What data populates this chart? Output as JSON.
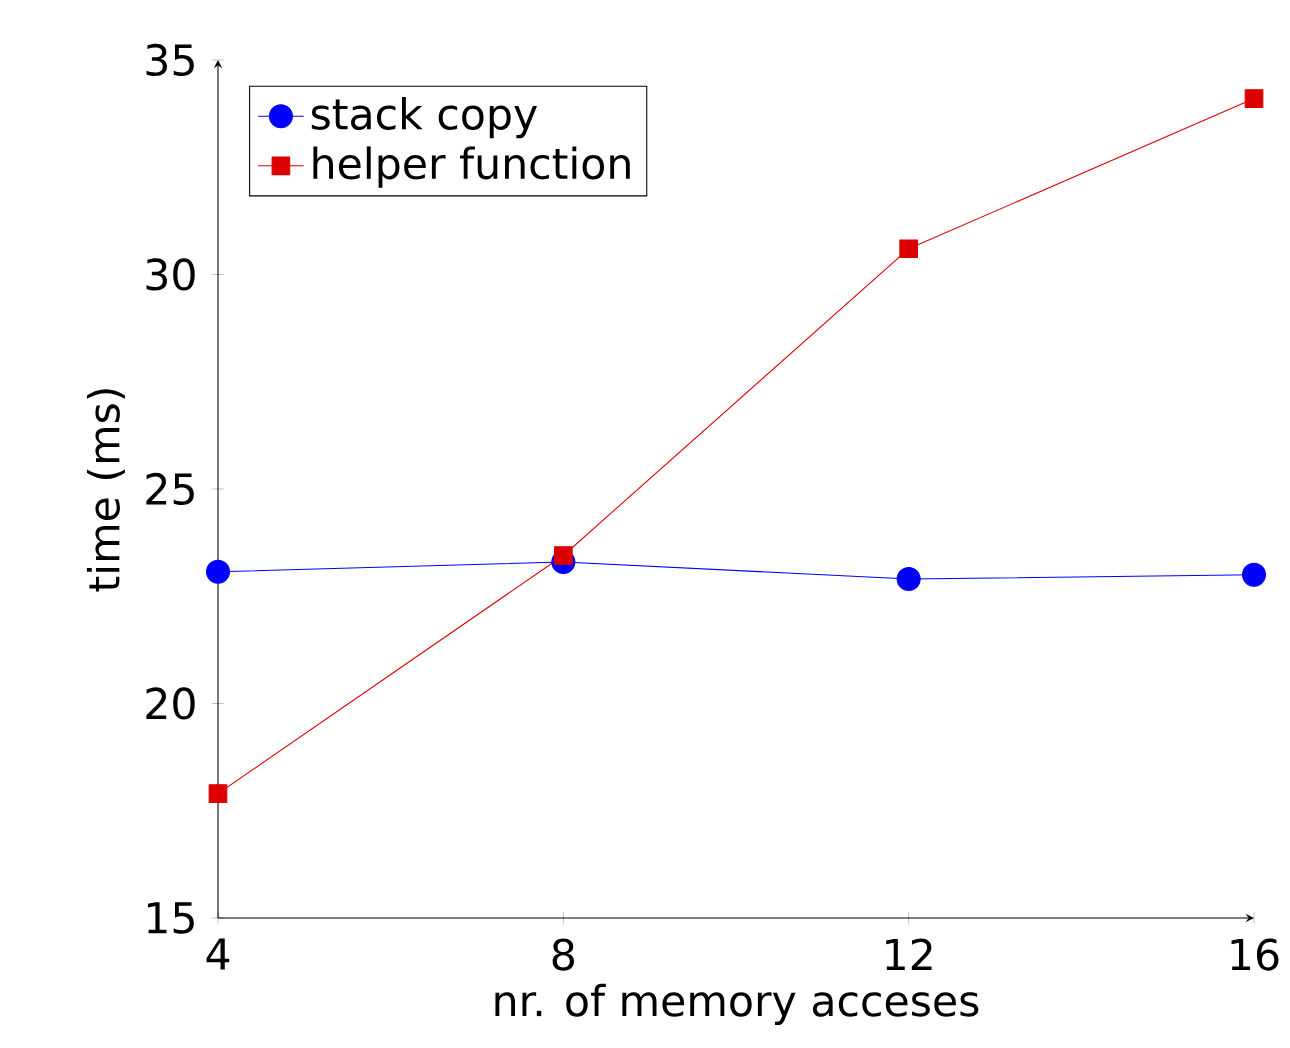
{
  "chart_data": {
    "type": "line",
    "xlabel": "nr. of memory acceses",
    "ylabel": "time (ms)",
    "x": [
      4,
      8,
      12,
      16
    ],
    "series": [
      {
        "name": "stack copy",
        "color": "#0000ff",
        "marker": "circle",
        "values": [
          23.07,
          23.3,
          22.9,
          23.0
        ]
      },
      {
        "name": "helper function",
        "color": "#dd0000",
        "marker": "square",
        "values": [
          17.9,
          23.45,
          30.6,
          34.1
        ]
      }
    ],
    "xlim": [
      4,
      16
    ],
    "ylim": [
      15,
      35
    ],
    "xticks": [
      4,
      8,
      12,
      16
    ],
    "yticks": [
      15,
      20,
      25,
      30,
      35
    ],
    "grid": false,
    "legend": "top left",
    "line_style": "solid"
  }
}
